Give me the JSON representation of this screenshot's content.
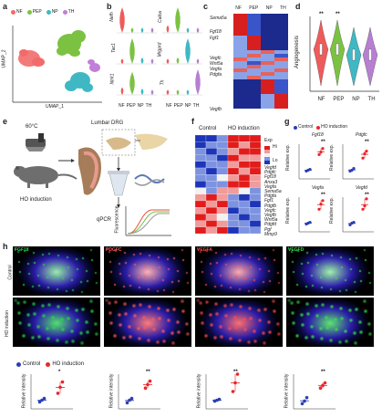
{
  "panel_labels": {
    "a": "a",
    "b": "b",
    "c": "c",
    "d": "d",
    "e": "e",
    "f": "f",
    "g": "g",
    "h": "h"
  },
  "panel_a": {
    "legend": [
      {
        "label": "NF",
        "color": "#f26b6b"
      },
      {
        "label": "PEP",
        "color": "#7cc242"
      },
      {
        "label": "NP",
        "color": "#3fb8c4"
      },
      {
        "label": "TH",
        "color": "#c07fd8"
      }
    ],
    "xlabel": "UMAP_1",
    "ylabel": "UMAP_2"
  },
  "panel_b": {
    "genes_left": [
      "Nefh",
      "Tac1",
      "Ntrk1"
    ],
    "genes_right": [
      "Calca",
      "Mrgprd",
      "Th"
    ],
    "categories": [
      "NF",
      "PEP",
      "NP",
      "TH"
    ],
    "colors": [
      "#ef5b5b",
      "#7cc242",
      "#3fb8c4",
      "#b77fd0"
    ]
  },
  "panel_c": {
    "columns": [
      "NF",
      "PEP",
      "NP",
      "TH"
    ],
    "genes": [
      "Sema5a",
      "Fgf18",
      "Fgf1",
      "Vegfc",
      "Wnt5a",
      "Vegfa",
      "Pdgfa",
      "Vegfb"
    ]
  },
  "panel_d": {
    "ylabel": "Angiogenesis",
    "categories": [
      "NF",
      "PEP",
      "NP",
      "TH"
    ],
    "significance": [
      "**",
      "**",
      "",
      ""
    ],
    "colors": [
      "#ef5b5b",
      "#7cc242",
      "#3fb8c4",
      "#b77fd0"
    ]
  },
  "panel_e": {
    "temp": "60°C",
    "label_ho": "HO induction",
    "label_drg": "Lumbar DRG",
    "label_qpcr": "qPCR",
    "ylabel": "Fluorescence"
  },
  "panel_f": {
    "col_control": "Control",
    "col_ho": "HO induction",
    "legend_title": "Exp",
    "legend_hi": "Hi",
    "legend_lo": "Lo",
    "genes": [
      "Vegfd",
      "Pdgfc",
      "Fgf18",
      "Anxa3",
      "Vegfa",
      "Sema5a",
      "Pdgfa",
      "Fgf1",
      "Pdgfb",
      "Vegfc",
      "Vegfb",
      "Wnt5a",
      "Pdgfd",
      "Pgf",
      "Mmp9"
    ]
  },
  "panel_g": {
    "legend": [
      {
        "label": "Control",
        "color": "#2b3fb5"
      },
      {
        "label": "HO induction",
        "color": "#e8262a"
      }
    ],
    "genes": [
      "Fgf18",
      "Pdgfc",
      "Vegfa",
      "Vegfd"
    ],
    "ylabel": "Relative exp.",
    "significance": [
      "**",
      "**",
      "**",
      "**"
    ]
  },
  "panel_h": {
    "stain_labels": [
      "FGF18",
      "PDGFC",
      "VEGFA",
      "VEGFD"
    ],
    "stain_colors": [
      "#27d84a",
      "#ff5a5a",
      "#ff4b4b",
      "#35e04e"
    ],
    "row_labels": [
      "Control",
      "HO induction"
    ],
    "legend": [
      {
        "label": "Control",
        "color": "#2b3fb5"
      },
      {
        "label": "HO induction",
        "color": "#e8262a"
      }
    ],
    "ylabel": "Relative intensity",
    "significance": [
      "*",
      "**",
      "**",
      "**"
    ]
  }
}
